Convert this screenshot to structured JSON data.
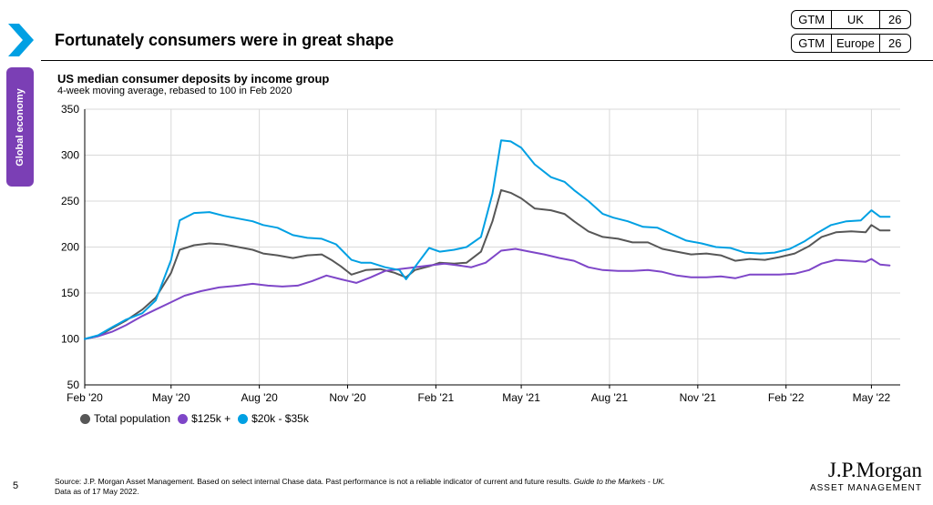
{
  "slide": {
    "title": "Fortunately consumers were in great shape",
    "section": "Global economy",
    "page_number": "5"
  },
  "badges": [
    {
      "label": "GTM",
      "region": "UK",
      "page": "26"
    },
    {
      "label": "GTM",
      "region": "Europe",
      "page": "26"
    }
  ],
  "footer": {
    "source": "Source: J.P. Morgan Asset Management. Based on select internal Chase data. Past performance is not a reliable indicator of current and future results.",
    "guide": "Guide to the Markets - UK.",
    "data_as_of": "Data as of 17 May 2022."
  },
  "logo": {
    "name": "J.P.Morgan",
    "sub": "ASSET MANAGEMENT"
  },
  "colors": {
    "accent": "#00a0e3",
    "section_tab": "#7b3fb5"
  },
  "chart_data": {
    "type": "line",
    "title": "US median consumer deposits by income group",
    "subtitle": "4-week moving average, rebased to 100 in Feb 2020",
    "ylim": [
      50,
      350
    ],
    "yticks": [
      50,
      100,
      150,
      200,
      250,
      300,
      350
    ],
    "xlim": [
      "2020-02-01",
      "2022-05-31"
    ],
    "xtick_labels": [
      "Feb '20",
      "May '20",
      "Aug '20",
      "Nov '20",
      "Feb '21",
      "May '21",
      "Aug '21",
      "Nov '21",
      "Feb '22",
      "May '22"
    ],
    "xtick_dates": [
      "2020-02-01",
      "2020-05-01",
      "2020-08-01",
      "2020-11-01",
      "2021-02-01",
      "2021-05-01",
      "2021-08-01",
      "2021-11-01",
      "2022-02-01",
      "2022-05-01"
    ],
    "grid": true,
    "legend_position": "bottom-left",
    "series": [
      {
        "name": "Total population",
        "color": "#575757",
        "points": [
          [
            "2020-02-01",
            100
          ],
          [
            "2020-02-15",
            103
          ],
          [
            "2020-03-01",
            112
          ],
          [
            "2020-03-15",
            120
          ],
          [
            "2020-04-01",
            132
          ],
          [
            "2020-04-15",
            145
          ],
          [
            "2020-05-01",
            172
          ],
          [
            "2020-05-10",
            197
          ],
          [
            "2020-05-25",
            202
          ],
          [
            "2020-06-10",
            204
          ],
          [
            "2020-06-25",
            203
          ],
          [
            "2020-07-10",
            200
          ],
          [
            "2020-07-25",
            197
          ],
          [
            "2020-08-05",
            193
          ],
          [
            "2020-08-20",
            191
          ],
          [
            "2020-09-05",
            188
          ],
          [
            "2020-09-20",
            191
          ],
          [
            "2020-10-05",
            192
          ],
          [
            "2020-10-15",
            186
          ],
          [
            "2020-10-25",
            179
          ],
          [
            "2020-11-05",
            170
          ],
          [
            "2020-11-20",
            175
          ],
          [
            "2020-12-05",
            176
          ],
          [
            "2020-12-20",
            172
          ],
          [
            "2021-01-01",
            167
          ],
          [
            "2021-01-10",
            175
          ],
          [
            "2021-01-25",
            179
          ],
          [
            "2021-02-05",
            183
          ],
          [
            "2021-02-20",
            182
          ],
          [
            "2021-03-05",
            183
          ],
          [
            "2021-03-20",
            195
          ],
          [
            "2021-04-01",
            228
          ],
          [
            "2021-04-10",
            262
          ],
          [
            "2021-04-20",
            259
          ],
          [
            "2021-05-01",
            253
          ],
          [
            "2021-05-15",
            242
          ],
          [
            "2021-06-01",
            240
          ],
          [
            "2021-06-15",
            236
          ],
          [
            "2021-06-25",
            228
          ],
          [
            "2021-07-10",
            217
          ],
          [
            "2021-07-25",
            211
          ],
          [
            "2021-08-10",
            209
          ],
          [
            "2021-08-25",
            205
          ],
          [
            "2021-09-10",
            205
          ],
          [
            "2021-09-25",
            198
          ],
          [
            "2021-10-10",
            195
          ],
          [
            "2021-10-25",
            192
          ],
          [
            "2021-11-10",
            193
          ],
          [
            "2021-11-25",
            191
          ],
          [
            "2021-12-10",
            185
          ],
          [
            "2021-12-25",
            187
          ],
          [
            "2022-01-10",
            186
          ],
          [
            "2022-01-25",
            189
          ],
          [
            "2022-02-10",
            193
          ],
          [
            "2022-02-25",
            201
          ],
          [
            "2022-03-10",
            211
          ],
          [
            "2022-03-25",
            216
          ],
          [
            "2022-04-10",
            217
          ],
          [
            "2022-04-25",
            216
          ],
          [
            "2022-05-01",
            224
          ],
          [
            "2022-05-10",
            218
          ],
          [
            "2022-05-20",
            218
          ]
        ]
      },
      {
        "name": "$125k +",
        "color": "#7e46c8",
        "points": [
          [
            "2020-02-01",
            100
          ],
          [
            "2020-02-15",
            103
          ],
          [
            "2020-03-01",
            108
          ],
          [
            "2020-03-15",
            115
          ],
          [
            "2020-04-01",
            125
          ],
          [
            "2020-04-15",
            132
          ],
          [
            "2020-05-01",
            140
          ],
          [
            "2020-05-15",
            147
          ],
          [
            "2020-06-01",
            152
          ],
          [
            "2020-06-20",
            156
          ],
          [
            "2020-07-10",
            158
          ],
          [
            "2020-07-25",
            160
          ],
          [
            "2020-08-10",
            158
          ],
          [
            "2020-08-25",
            157
          ],
          [
            "2020-09-10",
            158
          ],
          [
            "2020-09-25",
            163
          ],
          [
            "2020-10-10",
            169
          ],
          [
            "2020-10-25",
            165
          ],
          [
            "2020-11-10",
            161
          ],
          [
            "2020-11-25",
            167
          ],
          [
            "2020-12-10",
            174
          ],
          [
            "2020-12-25",
            176
          ],
          [
            "2021-01-10",
            178
          ],
          [
            "2021-01-25",
            180
          ],
          [
            "2021-02-10",
            182
          ],
          [
            "2021-02-25",
            180
          ],
          [
            "2021-03-10",
            178
          ],
          [
            "2021-03-25",
            183
          ],
          [
            "2021-04-10",
            196
          ],
          [
            "2021-04-25",
            198
          ],
          [
            "2021-05-10",
            195
          ],
          [
            "2021-05-25",
            192
          ],
          [
            "2021-06-10",
            188
          ],
          [
            "2021-06-25",
            185
          ],
          [
            "2021-07-10",
            178
          ],
          [
            "2021-07-25",
            175
          ],
          [
            "2021-08-10",
            174
          ],
          [
            "2021-08-25",
            174
          ],
          [
            "2021-09-10",
            175
          ],
          [
            "2021-09-25",
            173
          ],
          [
            "2021-10-10",
            169
          ],
          [
            "2021-10-25",
            167
          ],
          [
            "2021-11-10",
            167
          ],
          [
            "2021-11-25",
            168
          ],
          [
            "2021-12-10",
            166
          ],
          [
            "2021-12-25",
            170
          ],
          [
            "2022-01-10",
            170
          ],
          [
            "2022-01-25",
            170
          ],
          [
            "2022-02-10",
            171
          ],
          [
            "2022-02-25",
            175
          ],
          [
            "2022-03-10",
            182
          ],
          [
            "2022-03-25",
            186
          ],
          [
            "2022-04-10",
            185
          ],
          [
            "2022-04-25",
            184
          ],
          [
            "2022-05-01",
            187
          ],
          [
            "2022-05-10",
            181
          ],
          [
            "2022-05-20",
            180
          ]
        ]
      },
      {
        "name": "$20k - $35k",
        "color": "#00a0e3",
        "points": [
          [
            "2020-02-01",
            100
          ],
          [
            "2020-02-15",
            104
          ],
          [
            "2020-03-01",
            113
          ],
          [
            "2020-03-15",
            121
          ],
          [
            "2020-04-01",
            128
          ],
          [
            "2020-04-15",
            142
          ],
          [
            "2020-05-01",
            186
          ],
          [
            "2020-05-10",
            229
          ],
          [
            "2020-05-25",
            237
          ],
          [
            "2020-06-10",
            238
          ],
          [
            "2020-06-25",
            234
          ],
          [
            "2020-07-10",
            231
          ],
          [
            "2020-07-25",
            228
          ],
          [
            "2020-08-05",
            224
          ],
          [
            "2020-08-20",
            221
          ],
          [
            "2020-09-05",
            213
          ],
          [
            "2020-09-20",
            210
          ],
          [
            "2020-10-05",
            209
          ],
          [
            "2020-10-20",
            203
          ],
          [
            "2020-11-05",
            186
          ],
          [
            "2020-11-15",
            183
          ],
          [
            "2020-11-25",
            183
          ],
          [
            "2020-12-10",
            178
          ],
          [
            "2020-12-25",
            175
          ],
          [
            "2021-01-01",
            165
          ],
          [
            "2021-01-10",
            178
          ],
          [
            "2021-01-25",
            199
          ],
          [
            "2021-02-05",
            195
          ],
          [
            "2021-02-20",
            197
          ],
          [
            "2021-03-05",
            200
          ],
          [
            "2021-03-20",
            211
          ],
          [
            "2021-04-01",
            258
          ],
          [
            "2021-04-10",
            316
          ],
          [
            "2021-04-20",
            315
          ],
          [
            "2021-05-01",
            308
          ],
          [
            "2021-05-15",
            290
          ],
          [
            "2021-06-01",
            276
          ],
          [
            "2021-06-15",
            271
          ],
          [
            "2021-06-25",
            262
          ],
          [
            "2021-07-10",
            250
          ],
          [
            "2021-07-25",
            236
          ],
          [
            "2021-08-05",
            232
          ],
          [
            "2021-08-20",
            228
          ],
          [
            "2021-09-05",
            222
          ],
          [
            "2021-09-20",
            221
          ],
          [
            "2021-10-05",
            214
          ],
          [
            "2021-10-20",
            207
          ],
          [
            "2021-11-05",
            204
          ],
          [
            "2021-11-20",
            200
          ],
          [
            "2021-12-05",
            199
          ],
          [
            "2021-12-20",
            194
          ],
          [
            "2022-01-05",
            193
          ],
          [
            "2022-01-20",
            194
          ],
          [
            "2022-02-05",
            198
          ],
          [
            "2022-02-20",
            206
          ],
          [
            "2022-03-05",
            215
          ],
          [
            "2022-03-20",
            224
          ],
          [
            "2022-04-05",
            228
          ],
          [
            "2022-04-20",
            229
          ],
          [
            "2022-05-01",
            240
          ],
          [
            "2022-05-10",
            233
          ],
          [
            "2022-05-20",
            233
          ]
        ]
      }
    ]
  }
}
